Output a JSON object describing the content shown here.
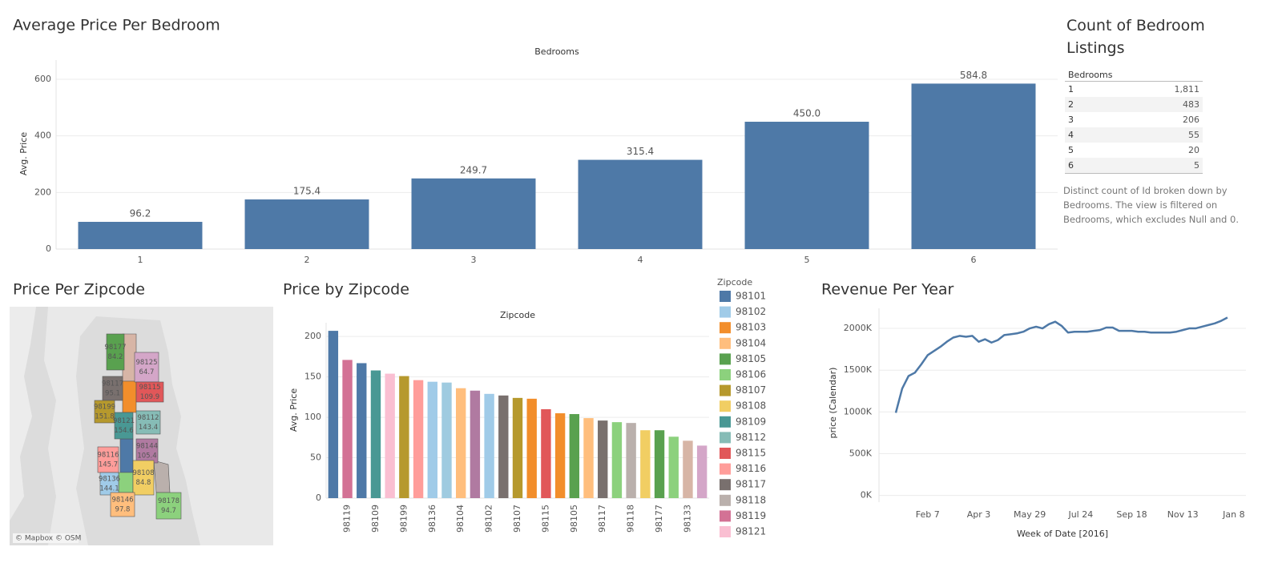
{
  "chart_data": [
    {
      "type": "bar",
      "title": "Average Price Per Bedroom",
      "x_title": "Bedrooms",
      "y_title": "Avg. Price",
      "categories": [
        "1",
        "2",
        "3",
        "4",
        "5",
        "6"
      ],
      "values": [
        96.2,
        175.4,
        249.7,
        315.4,
        450.0,
        584.8
      ],
      "value_labels": [
        "96.2",
        "175.4",
        "249.7",
        "315.4",
        "450.0",
        "584.8"
      ],
      "color": "#4e79a7",
      "ylim": [
        0,
        668
      ],
      "yticks": [
        0,
        200,
        400,
        600
      ],
      "grid": true
    },
    {
      "type": "bar",
      "title": "Price by Zipcode",
      "x_title": "Zipcode",
      "y_title": "Avg. Price",
      "categories": [
        null,
        "98119",
        null,
        "98109",
        null,
        "98199",
        null,
        "98136",
        null,
        "98104",
        null,
        "98102",
        null,
        "98107",
        null,
        "98115",
        null,
        "98105",
        null,
        "98117",
        null,
        "98118",
        null,
        "98177",
        null,
        "98133",
        null
      ],
      "values": [
        207,
        171,
        167,
        158,
        154,
        151,
        146,
        144,
        143,
        136,
        133,
        129,
        127,
        124,
        123,
        110,
        105,
        104,
        99,
        96,
        94,
        93,
        84,
        84,
        76,
        71,
        65
      ],
      "colors": [
        "#4e79a7",
        "#d37295",
        "#4e79a7",
        "#499894",
        "#fabfd2",
        "#b6992d",
        "#ff9d9a",
        "#a0cbe8",
        "#9fcbe0",
        "#ffbe7d",
        "#b07aa1",
        "#a0cbe8",
        "#79706e",
        "#b6992d",
        "#f28e2b",
        "#e15759",
        "#f28e2b",
        "#59a14f",
        "#ffbe7d",
        "#79706e",
        "#8cd17d",
        "#bab0ac",
        "#f1ce63",
        "#59a14f",
        "#8cd17d",
        "#d7b5a6",
        "#d4a6c8"
      ],
      "ylim": [
        0,
        217
      ],
      "yticks": [
        0,
        50,
        100,
        150,
        200
      ],
      "grid": true,
      "legend": {
        "title": "Zipcode",
        "entries": [
          {
            "name": "98101",
            "color": "#4e79a7"
          },
          {
            "name": "98102",
            "color": "#a0cbe8"
          },
          {
            "name": "98103",
            "color": "#f28e2b"
          },
          {
            "name": "98104",
            "color": "#ffbe7d"
          },
          {
            "name": "98105",
            "color": "#59a14f"
          },
          {
            "name": "98106",
            "color": "#8cd17d"
          },
          {
            "name": "98107",
            "color": "#b6992d"
          },
          {
            "name": "98108",
            "color": "#f1ce63"
          },
          {
            "name": "98109",
            "color": "#499894"
          },
          {
            "name": "98112",
            "color": "#86bcb6"
          },
          {
            "name": "98115",
            "color": "#e15759"
          },
          {
            "name": "98116",
            "color": "#ff9d9a"
          },
          {
            "name": "98117",
            "color": "#79706e"
          },
          {
            "name": "98118",
            "color": "#bab0ac"
          },
          {
            "name": "98119",
            "color": "#d37295"
          },
          {
            "name": "98121",
            "color": "#fabfd2"
          }
        ]
      }
    },
    {
      "type": "line",
      "title": "Revenue Per Year",
      "x_title": "Week of Date [2016]",
      "y_title": "price (Calendar)",
      "categories": [
        null,
        null,
        null,
        null,
        null,
        "Feb 7",
        null,
        null,
        null,
        null,
        null,
        null,
        null,
        "Apr 3",
        null,
        null,
        null,
        null,
        null,
        null,
        null,
        "May 29",
        null,
        null,
        null,
        null,
        null,
        null,
        null,
        "Jul 24",
        null,
        null,
        null,
        null,
        null,
        null,
        null,
        "Sep 18",
        null,
        null,
        null,
        null,
        null,
        null,
        null,
        "Nov 13",
        null,
        null,
        null,
        null,
        null,
        null,
        null,
        "Jan 8"
      ],
      "values": [
        990000,
        1280000,
        1430000,
        1470000,
        1570000,
        1680000,
        1730000,
        1780000,
        1840000,
        1890000,
        1910000,
        1900000,
        1910000,
        1840000,
        1870000,
        1830000,
        1860000,
        1920000,
        1930000,
        1940000,
        1960000,
        2000000,
        2020000,
        2000000,
        2050000,
        2080000,
        2030000,
        1950000,
        1960000,
        1960000,
        1960000,
        1970000,
        1980000,
        2010000,
        2010000,
        1970000,
        1970000,
        1970000,
        1960000,
        1960000,
        1950000,
        1950000,
        1950000,
        1950000,
        1960000,
        1980000,
        2000000,
        2000000,
        2020000,
        2040000,
        2060000,
        2090000,
        2130000,
        null
      ],
      "color": "#4e79a7",
      "ylim": [
        -80000,
        2240000
      ],
      "yticks": [
        {
          "value": 0,
          "label": "0K"
        },
        {
          "value": 500000,
          "label": "500K"
        },
        {
          "value": 1000000,
          "label": "1000K"
        },
        {
          "value": 1500000,
          "label": "1500K"
        },
        {
          "value": 2000000,
          "label": "2000K"
        }
      ],
      "grid": true
    }
  ],
  "table": {
    "title": "Count of Bedroom Listings",
    "header": "Bedrooms",
    "rows": [
      [
        "1",
        "1,811"
      ],
      [
        "2",
        "483"
      ],
      [
        "3",
        "206"
      ],
      [
        "4",
        "55"
      ],
      [
        "5",
        "20"
      ],
      [
        "6",
        "5"
      ]
    ],
    "note": "Distinct count of Id broken down by Bedrooms. The view is filtered on Bedrooms, which excludes Null and 0."
  },
  "map": {
    "title": "Price Per Zipcode",
    "attribution": "© Mapbox © OSM",
    "regions": [
      {
        "zipcode": "98177",
        "value": 84.2,
        "color": "#59a14f"
      },
      {
        "zipcode": "98125",
        "value": 64.7,
        "color": "#d4a6c8"
      },
      {
        "zipcode": "98117",
        "value": 95.1,
        "color": "#79706e"
      },
      {
        "zipcode": "98115",
        "value": 109.9,
        "color": "#e15759"
      },
      {
        "zipcode": "98199",
        "value": 151.8,
        "color": "#b6992d"
      },
      {
        "zipcode": "98112",
        "value": 143.4,
        "color": "#86bcb6"
      },
      {
        "zipcode": "98121",
        "value": 154.6,
        "color": "#499894"
      },
      {
        "zipcode": "98144",
        "value": 105.4,
        "color": "#b07aa1"
      },
      {
        "zipcode": "98116",
        "value": 145.7,
        "color": "#ff9d9a"
      },
      {
        "zipcode": "98136",
        "value": 144.1,
        "color": "#a0cbe8"
      },
      {
        "zipcode": "98108",
        "value": 84.8,
        "color": "#f1ce63"
      },
      {
        "zipcode": "98146",
        "value": 97.8,
        "color": "#ffbe7d"
      },
      {
        "zipcode": "98178",
        "value": 94.7,
        "color": "#8cd17d"
      }
    ]
  }
}
